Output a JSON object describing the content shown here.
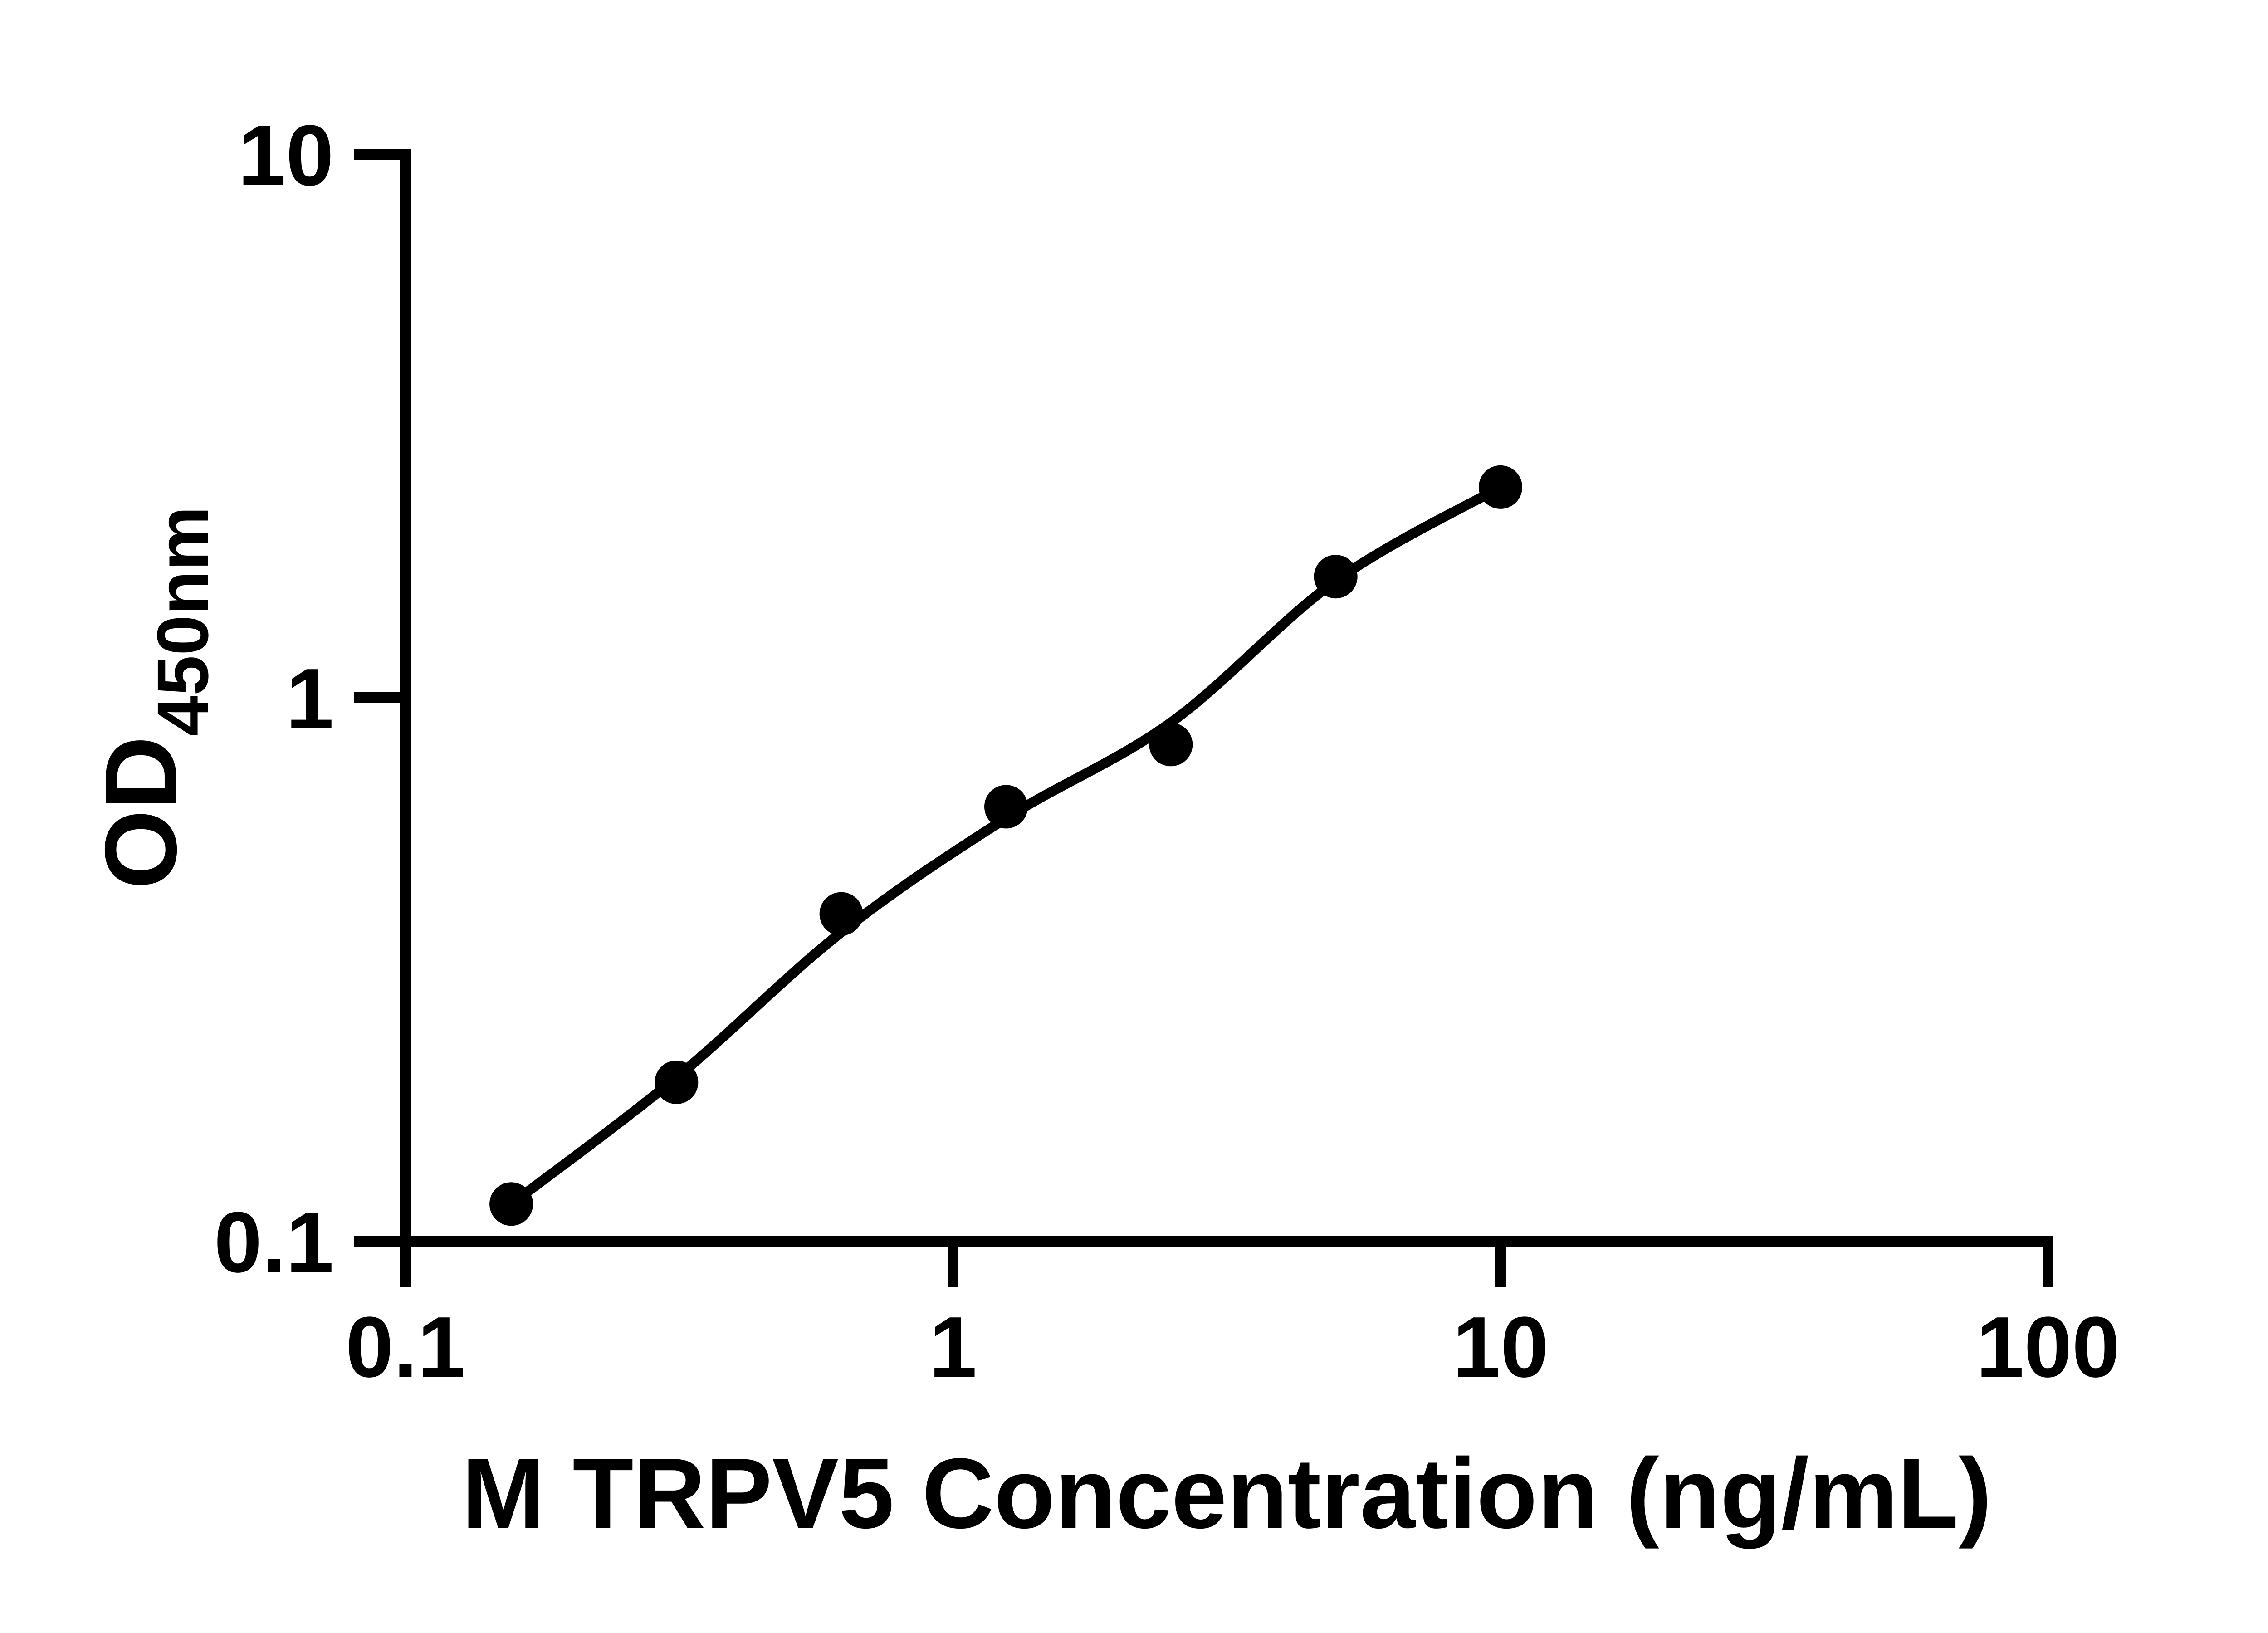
{
  "figure": {
    "background_color": "#ffffff",
    "ink_color": "#000000"
  },
  "chart_data": {
    "type": "scatter",
    "title": "",
    "xlabel": "M TRPV5 Concentration (ng/mL)",
    "ylabel_main": "OD",
    "ylabel_sub": "450nm",
    "x_scale": "log",
    "y_scale": "log",
    "xlim": [
      0.1,
      100
    ],
    "ylim": [
      0.1,
      10
    ],
    "x_ticks": [
      0.1,
      1,
      10,
      100
    ],
    "x_tick_labels": [
      "0.1",
      "1",
      "10",
      "100"
    ],
    "y_ticks": [
      10,
      1,
      0.1
    ],
    "y_tick_labels": [
      "10",
      "1",
      "0.1"
    ],
    "grid": false,
    "legend": null,
    "marker_color": "#000000",
    "line_color": "#000000",
    "series": [
      {
        "name": "standard-points",
        "type": "scatter",
        "marker": "filled-circle",
        "x": [
          0.156,
          0.3125,
          0.625,
          1.25,
          2.5,
          5,
          10
        ],
        "y": [
          0.117,
          0.196,
          0.4,
          0.63,
          0.82,
          1.67,
          2.44
        ]
      },
      {
        "name": "fit-line",
        "type": "line",
        "x": [
          0.156,
          0.3125,
          0.625,
          1.25,
          2.5,
          5,
          10
        ],
        "y": [
          0.117,
          0.2,
          0.37,
          0.6,
          0.9,
          1.64,
          2.44
        ]
      }
    ]
  }
}
